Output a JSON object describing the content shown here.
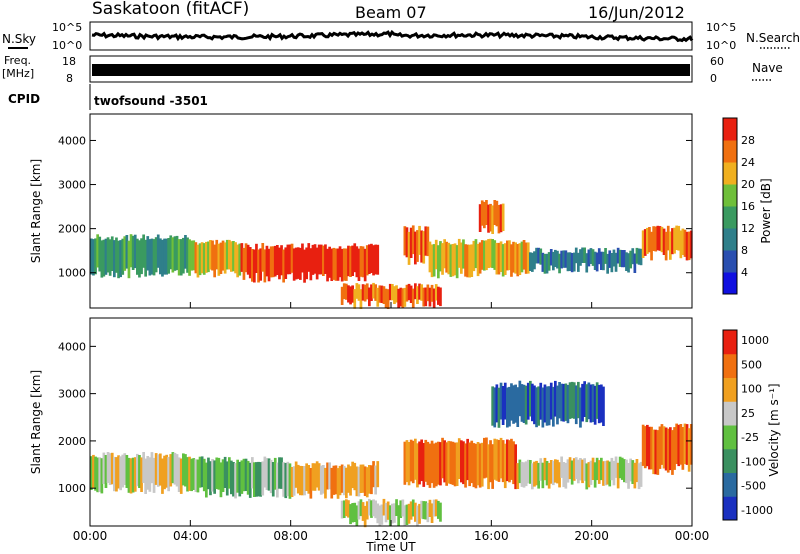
{
  "header": {
    "title": "Saskatoon (fitACF)",
    "beam": "Beam 07",
    "date": "16/Jun/2012"
  },
  "status_panels": {
    "nsky_label": "N.Sky",
    "nsky_ticks": [
      "10^5",
      "10^0"
    ],
    "nsearch_label": "N.Search",
    "freq_label_line1": "Freq.",
    "freq_label_line2": "[MHz]",
    "freq_ticks": [
      "18",
      "8"
    ],
    "nave_label": "Nave",
    "nave_ticks": [
      "60",
      "0"
    ],
    "cpid_label": "CPID",
    "cpid_value": "twofsound -3501"
  },
  "chart_data": [
    {
      "type": "heatmap",
      "name": "power",
      "xlabel": "",
      "ylabel": "Slant Range [km]",
      "ylim": [
        200,
        4600
      ],
      "yticks": [
        "1000",
        "2000",
        "3000",
        "4000"
      ],
      "ytick_values": [
        1000,
        2000,
        3000,
        4000
      ],
      "xlim": [
        0,
        24
      ],
      "colorbar": {
        "label": "Power [dB]",
        "ticks": [
          "4",
          "8",
          "12",
          "16",
          "20",
          "24",
          "28"
        ],
        "colors": [
          "#1010e0",
          "#2a4fb0",
          "#2f7f8a",
          "#3a9a60",
          "#6fbf3a",
          "#f0b020",
          "#f07010",
          "#e82010"
        ]
      },
      "bands": [
        {
          "t0": 0.0,
          "t1": 4.0,
          "r0": 1000,
          "r1": 1800,
          "level": 3
        },
        {
          "t0": 4.0,
          "t1": 6.0,
          "r0": 1000,
          "r1": 1700,
          "level": 5
        },
        {
          "t0": 6.0,
          "t1": 11.5,
          "r0": 900,
          "r1": 1600,
          "level": 7
        },
        {
          "t0": 12.5,
          "t1": 13.5,
          "r0": 1300,
          "r1": 2000,
          "level": 6
        },
        {
          "t0": 13.5,
          "t1": 17.5,
          "r0": 1000,
          "r1": 1700,
          "level": 5
        },
        {
          "t0": 17.5,
          "t1": 22.0,
          "r0": 1100,
          "r1": 1500,
          "level": 2
        },
        {
          "t0": 22.0,
          "t1": 24.0,
          "r0": 1400,
          "r1": 2000,
          "level": 6
        },
        {
          "t0": 10.0,
          "t1": 14.0,
          "r0": 300,
          "r1": 700,
          "level": 6
        },
        {
          "t0": 15.5,
          "t1": 16.5,
          "r0": 2000,
          "r1": 2600,
          "level": 6
        }
      ]
    },
    {
      "type": "heatmap",
      "name": "velocity",
      "xlabel": "Time UT",
      "ylabel": "Slant Range [km]",
      "ylim": [
        200,
        4600
      ],
      "yticks": [
        "1000",
        "2000",
        "3000",
        "4000"
      ],
      "ytick_values": [
        1000,
        2000,
        3000,
        4000
      ],
      "xlim": [
        0,
        24
      ],
      "xticks": [
        "00:00",
        "04:00",
        "08:00",
        "12:00",
        "16:00",
        "20:00",
        "00:00"
      ],
      "xtick_values": [
        0,
        4,
        8,
        12,
        16,
        20,
        24
      ],
      "colorbar": {
        "label": "Velocity [m s⁻¹]",
        "ticks": [
          "1000",
          "500",
          "100",
          "25",
          "-25",
          "-100",
          "-500",
          "-1000"
        ],
        "colors": [
          "#1a30c0",
          "#2a6aa0",
          "#3a9060",
          "#60c040",
          "#c8c8c8",
          "#f0a020",
          "#f07010",
          "#e82010"
        ]
      },
      "bands": [
        {
          "t0": 0.0,
          "t1": 4.0,
          "r0": 1000,
          "r1": 1700,
          "level": 4
        },
        {
          "t0": 4.0,
          "t1": 8.0,
          "r0": 900,
          "r1": 1600,
          "level": 3
        },
        {
          "t0": 8.0,
          "t1": 11.5,
          "r0": 900,
          "r1": 1500,
          "level": 5
        },
        {
          "t0": 12.5,
          "t1": 17.0,
          "r0": 1100,
          "r1": 2000,
          "level": 6
        },
        {
          "t0": 17.0,
          "t1": 22.0,
          "r0": 1100,
          "r1": 1600,
          "level": 4
        },
        {
          "t0": 22.0,
          "t1": 24.0,
          "r0": 1400,
          "r1": 2300,
          "level": 6
        },
        {
          "t0": 10.0,
          "t1": 14.0,
          "r0": 300,
          "r1": 700,
          "level": 4
        },
        {
          "t0": 16.0,
          "t1": 20.5,
          "r0": 2400,
          "r1": 3200,
          "level": 1
        }
      ]
    }
  ]
}
